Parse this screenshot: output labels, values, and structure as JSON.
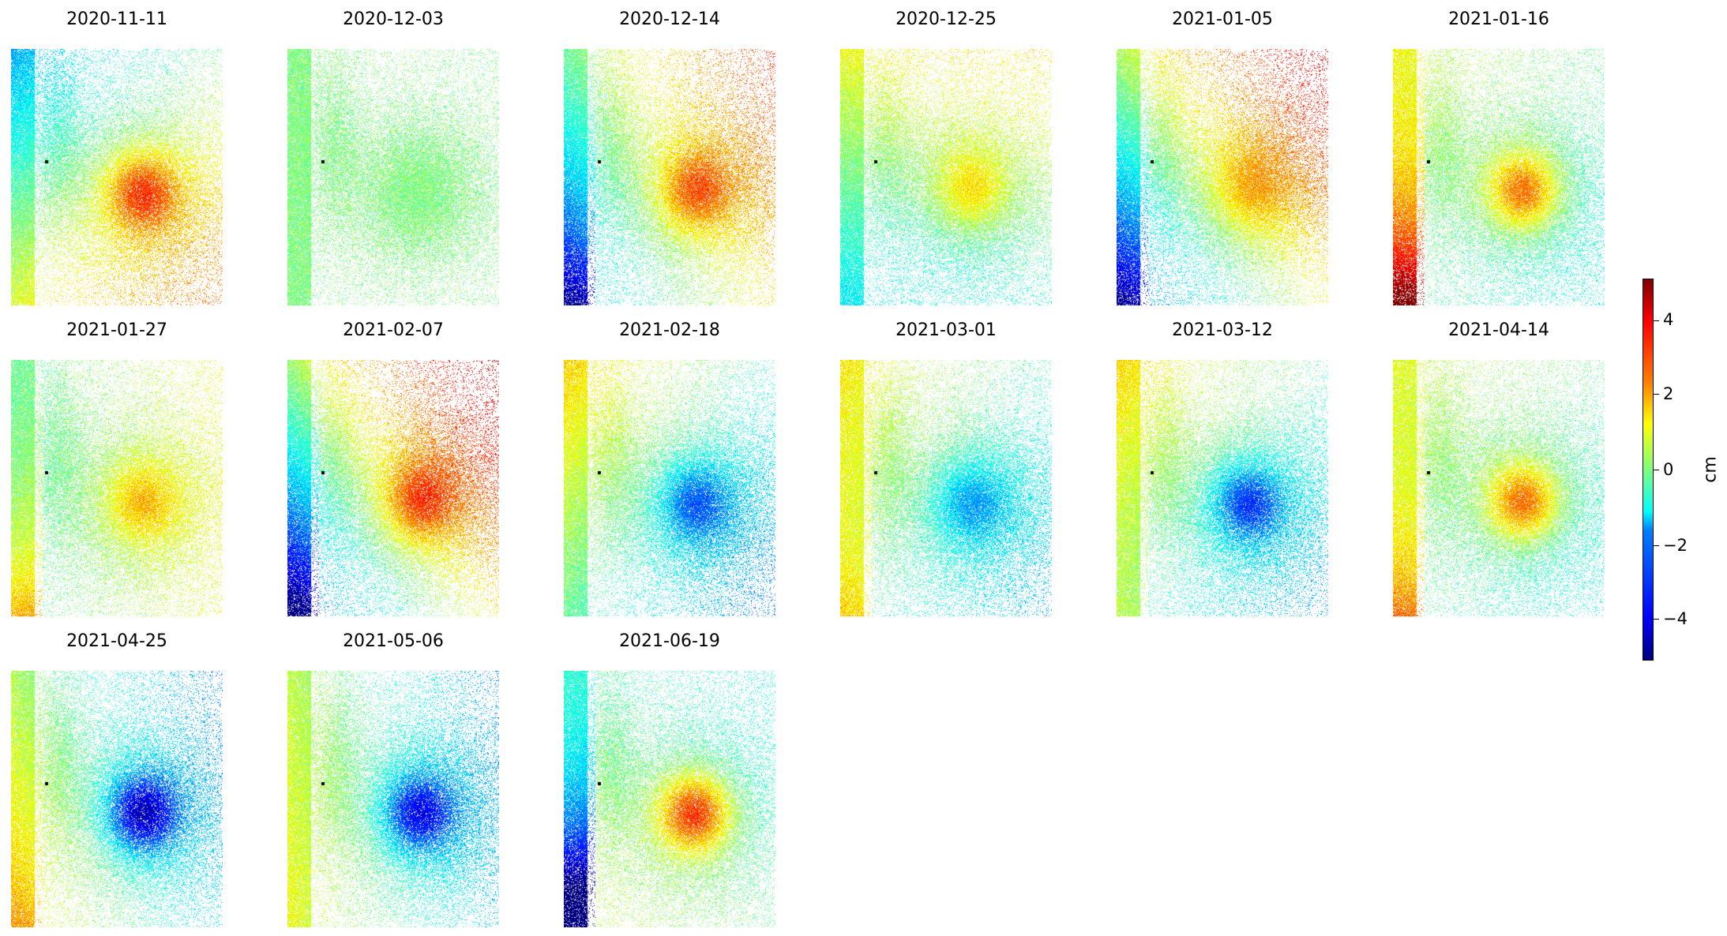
{
  "panels": [
    {
      "date": "2020-11-11"
    },
    {
      "date": "2020-12-03"
    },
    {
      "date": "2020-12-14"
    },
    {
      "date": "2020-12-25"
    },
    {
      "date": "2021-01-05"
    },
    {
      "date": "2021-01-16"
    },
    {
      "date": "2021-01-27"
    },
    {
      "date": "2021-02-07"
    },
    {
      "date": "2021-02-18"
    },
    {
      "date": "2021-03-01"
    },
    {
      "date": "2021-03-12"
    },
    {
      "date": "2021-04-14"
    },
    {
      "date": "2021-04-25"
    },
    {
      "date": "2021-05-06"
    },
    {
      "date": "2021-06-19"
    }
  ],
  "colorbar": {
    "label": "cm",
    "min": -5,
    "max": 5,
    "ticks": [
      {
        "value": 4,
        "label": "4"
      },
      {
        "value": 2,
        "label": "2"
      },
      {
        "value": 0,
        "label": "0"
      },
      {
        "value": -2,
        "label": "−2"
      },
      {
        "value": -4,
        "label": "−4"
      }
    ],
    "colormap": "jet"
  }
}
